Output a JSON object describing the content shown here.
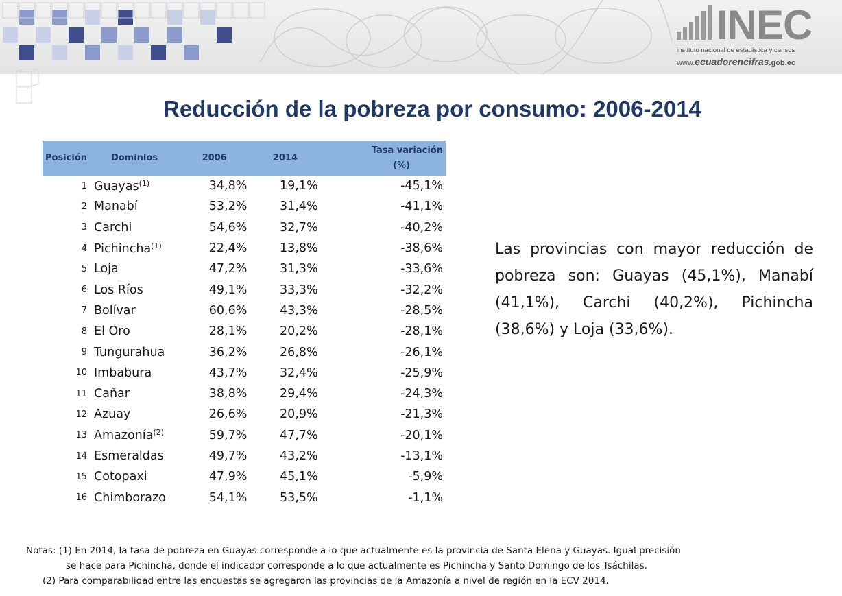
{
  "header": {
    "logo_text": "INEC",
    "logo_subtitle": "instituto nacional de estadística y censos",
    "logo_url_prefix": "www.",
    "logo_url_main": "ecuadorencifras",
    "logo_url_suffix": ".gob.ec"
  },
  "title": "Reducción de la pobreza por consumo: 2006-2014",
  "table": {
    "headers": {
      "posicion": "Posición",
      "dominios": "Dominios",
      "y2006": "2006",
      "y2014": "2014",
      "tasa_line1": "Tasa variación",
      "tasa_line2": "(%)"
    },
    "rows": [
      {
        "pos": "1",
        "dominio": "Guayas",
        "note": "(1)",
        "v2006": "34,8%",
        "v2014": "19,1%",
        "tasa": "-45,1%"
      },
      {
        "pos": "2",
        "dominio": "Manabí",
        "note": "",
        "v2006": "53,2%",
        "v2014": "31,4%",
        "tasa": "-41,1%"
      },
      {
        "pos": "3",
        "dominio": "Carchi",
        "note": "",
        "v2006": "54,6%",
        "v2014": "32,7%",
        "tasa": "-40,2%"
      },
      {
        "pos": "4",
        "dominio": "Pichincha",
        "note": "(1)",
        "v2006": "22,4%",
        "v2014": "13,8%",
        "tasa": "-38,6%"
      },
      {
        "pos": "5",
        "dominio": "Loja",
        "note": "",
        "v2006": "47,2%",
        "v2014": "31,3%",
        "tasa": "-33,6%"
      },
      {
        "pos": "6",
        "dominio": "Los Ríos",
        "note": "",
        "v2006": "49,1%",
        "v2014": "33,3%",
        "tasa": "-32,2%"
      },
      {
        "pos": "7",
        "dominio": "Bolívar",
        "note": "",
        "v2006": "60,6%",
        "v2014": "43,3%",
        "tasa": "-28,5%"
      },
      {
        "pos": "8",
        "dominio": "El Oro",
        "note": "",
        "v2006": "28,1%",
        "v2014": "20,2%",
        "tasa": "-28,1%"
      },
      {
        "pos": "9",
        "dominio": "Tungurahua",
        "note": "",
        "v2006": "36,2%",
        "v2014": "26,8%",
        "tasa": "-26,1%"
      },
      {
        "pos": "10",
        "dominio": "Imbabura",
        "note": "",
        "v2006": "43,7%",
        "v2014": "32,4%",
        "tasa": "-25,9%"
      },
      {
        "pos": "11",
        "dominio": "Cañar",
        "note": "",
        "v2006": "38,8%",
        "v2014": "29,4%",
        "tasa": "-24,3%"
      },
      {
        "pos": "12",
        "dominio": "Azuay",
        "note": "",
        "v2006": "26,6%",
        "v2014": "20,9%",
        "tasa": "-21,3%"
      },
      {
        "pos": "13",
        "dominio": "Amazonía",
        "note": "(2)",
        "v2006": "59,7%",
        "v2014": "47,7%",
        "tasa": "-20,1%"
      },
      {
        "pos": "14",
        "dominio": "Esmeraldas",
        "note": "",
        "v2006": "49,7%",
        "v2014": "43,2%",
        "tasa": "-13,1%"
      },
      {
        "pos": "15",
        "dominio": "Cotopaxi",
        "note": "",
        "v2006": "47,9%",
        "v2014": "45,1%",
        "tasa": "-5,9%"
      },
      {
        "pos": "16",
        "dominio": "Chimborazo",
        "note": "",
        "v2006": "54,1%",
        "v2014": "53,5%",
        "tasa": "-1,1%"
      }
    ]
  },
  "summary": "Las provincias con mayor reducción de pobreza son: Guayas (45,1%), Manabí (41,1%), Carchi (40,2%), Pichincha (38,6%) y Loja (33,6%).",
  "notes": {
    "line1": "Notas: (1) En 2014,  la tasa de pobreza en Guayas corresponde a lo que actualmente es la provincia de Santa Elena y Guayas. Igual precisión",
    "line2": "se hace para Pichincha, donde el indicador corresponde a lo que actualmente es Pichincha y Santo Domingo de los Tsáchilas.",
    "line3": "(2) Para comparabilidad entre las encuestas se agregaron las provincias de la Amazonía a nivel de región en la ECV 2014."
  },
  "colors": {
    "title": "#1f3864",
    "header_bg": "#8db3e2",
    "cube_dark": "#3f4d8c",
    "cube_mid": "#8b9ccc",
    "cube_light": "#c8d0ea"
  }
}
